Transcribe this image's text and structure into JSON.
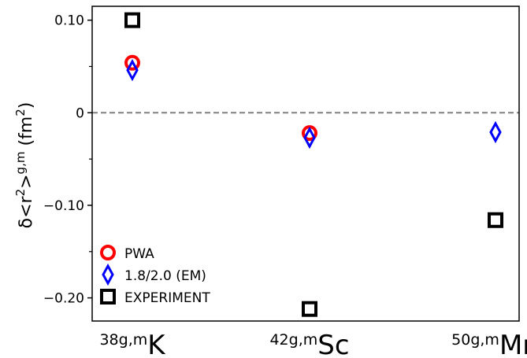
{
  "chart_data": {
    "type": "scatter",
    "title": "",
    "xlabel": "",
    "ylabel": {
      "prefix": "δ<r",
      "sup1": "2",
      "mid": ">",
      "sup2": "g,m",
      "unit_open": " (fm",
      "unit_sup": "2",
      "unit_close": ")"
    },
    "categories": [
      {
        "iso": "38g,m",
        "element": "K"
      },
      {
        "iso": "42g,m",
        "element": "Sc"
      },
      {
        "iso": "50g,m",
        "element": "Mn"
      }
    ],
    "ylim": [
      -0.225,
      0.115
    ],
    "yticks_labeled": [
      {
        "value": 0.1,
        "label": "0.10"
      },
      {
        "value": 0.0,
        "label": "0"
      },
      {
        "value": -0.1,
        "label": "−0.10"
      },
      {
        "value": -0.2,
        "label": "−0.20"
      }
    ],
    "yticks_minor": [
      0.05,
      -0.05,
      -0.15
    ],
    "zero_line": true,
    "legend_position": "lower-left",
    "series": [
      {
        "name": "PWA",
        "marker": "circle",
        "color": "#ff0000",
        "values": [
          0.054,
          -0.022,
          null
        ]
      },
      {
        "name": "1.8/2.0 (EM)",
        "marker": "thin-diamond",
        "color": "#0000ff",
        "values": [
          0.046,
          -0.027,
          -0.021
        ]
      },
      {
        "name": "EXPERIMENT",
        "marker": "square",
        "color": "#000000",
        "values": [
          0.1,
          -0.212,
          -0.116
        ]
      }
    ]
  }
}
